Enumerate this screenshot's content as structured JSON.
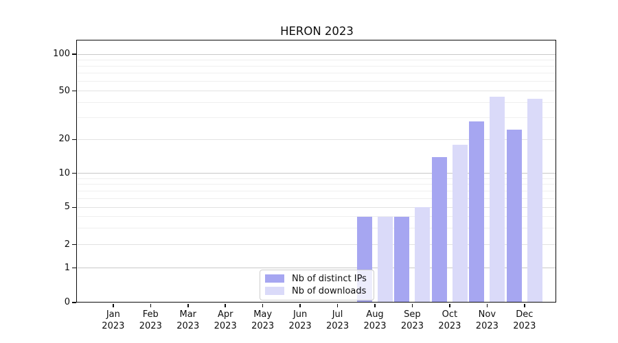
{
  "chart_data": {
    "type": "bar",
    "title": "HERON 2023",
    "categories": [
      "Jan 2023",
      "Feb 2023",
      "Mar 2023",
      "Apr 2023",
      "May 2023",
      "Jun 2023",
      "Jul 2023",
      "Aug 2023",
      "Sep 2023",
      "Oct 2023",
      "Nov 2023",
      "Dec 2023"
    ],
    "series": [
      {
        "name": "Nb of distinct IPs",
        "color": "#a6a6f1",
        "values": [
          0,
          0,
          0,
          0,
          0,
          0,
          0,
          4,
          4,
          14,
          28,
          24
        ]
      },
      {
        "name": "Nb of downloads",
        "color": "#dadaf9",
        "values": [
          0,
          0,
          0,
          0,
          0,
          0,
          0,
          4,
          5,
          18,
          45,
          43
        ]
      }
    ],
    "xlabel": "",
    "ylabel": "",
    "y_axis": {
      "scale": "symlog",
      "tick_values": [
        0,
        1,
        2,
        5,
        10,
        20,
        50,
        100
      ],
      "minor_tick_values": [
        3,
        4,
        6,
        7,
        8,
        9,
        30,
        40,
        60,
        70,
        80,
        90
      ],
      "ylim": [
        0,
        128
      ]
    },
    "grid": true,
    "legend_position": "lower center"
  },
  "colors": {
    "grid_major": "#c8c8c8",
    "grid_mid": "#e2e2e2",
    "grid_minor": "#efefef",
    "axis": "#0a0a0a",
    "background": "#ffffff"
  }
}
